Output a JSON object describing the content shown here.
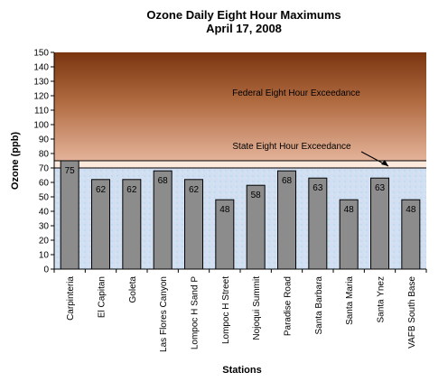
{
  "chart_data": {
    "type": "bar",
    "title": "Ozone Daily Eight Hour Maximums",
    "subtitle": "April 17, 2008",
    "xlabel": "Stations",
    "ylabel": "Ozone (ppb)",
    "ylim": [
      0,
      150
    ],
    "ytick_step": 10,
    "categories": [
      "Carpinteria",
      "El Capitan",
      "Goleta",
      "Las Flores Canyon",
      "Lompoc H Sand P",
      "Lompoc H Street",
      "Nojoqui Summit",
      "Paradise Road",
      "Santa Barbara",
      "Santa Maria",
      "Santa Ynez",
      "VAFB South Base"
    ],
    "values": [
      75,
      62,
      62,
      68,
      62,
      48,
      58,
      68,
      63,
      48,
      63,
      48
    ],
    "bar_color": "#8c8c8c",
    "federal_threshold": 75,
    "state_threshold": 70,
    "federal_label": "Federal Eight Hour Exceedance",
    "state_label": "State Eight Hour Exceedance",
    "grid": false,
    "legend": "none"
  }
}
